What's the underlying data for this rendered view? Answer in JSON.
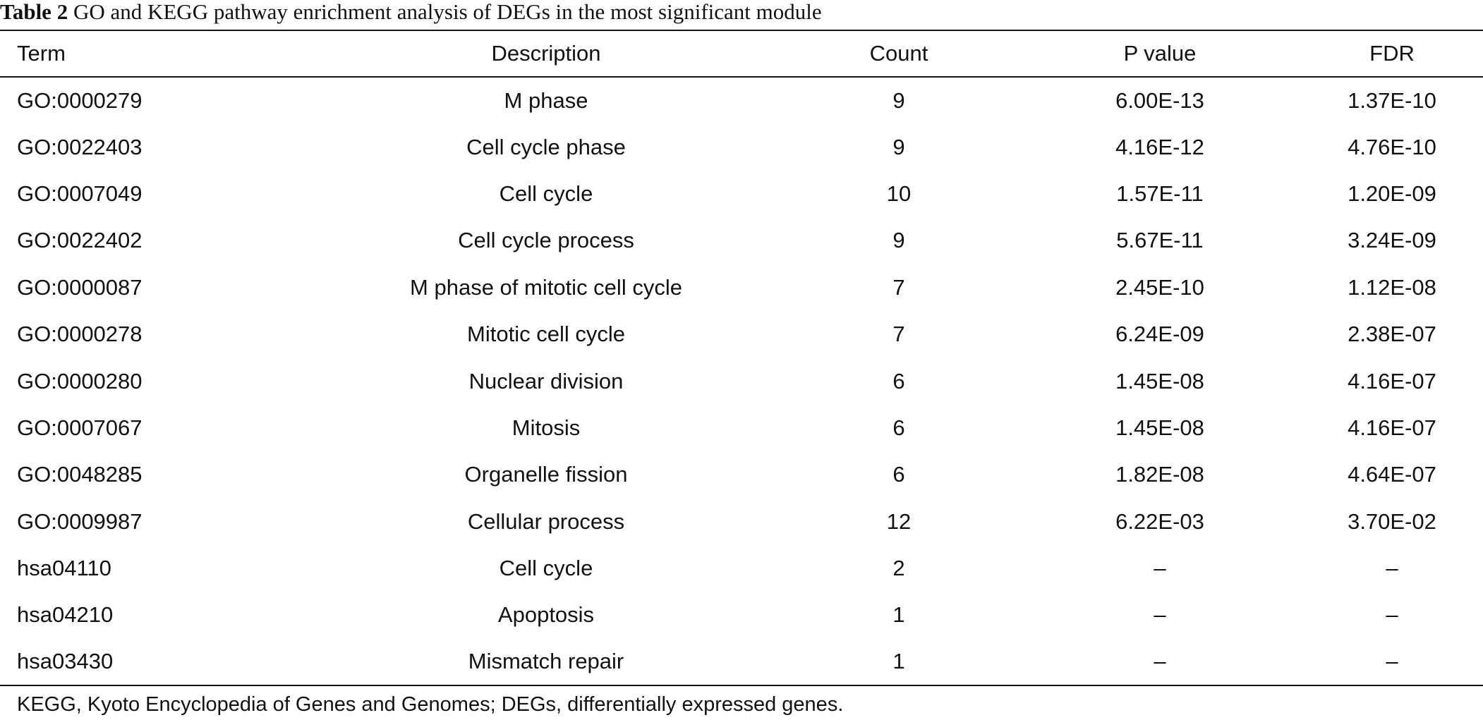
{
  "caption": {
    "label": "Table 2",
    "text": "GO and KEGG pathway enrichment analysis of DEGs in the most significant module"
  },
  "table": {
    "headers": [
      "Term",
      "Description",
      "Count",
      "P value",
      "FDR"
    ],
    "rows": [
      [
        "GO:0000279",
        "M phase",
        "9",
        "6.00E-13",
        "1.37E-10"
      ],
      [
        "GO:0022403",
        "Cell cycle phase",
        "9",
        "4.16E-12",
        "4.76E-10"
      ],
      [
        "GO:0007049",
        "Cell cycle",
        "10",
        "1.57E-11",
        "1.20E-09"
      ],
      [
        "GO:0022402",
        "Cell cycle process",
        "9",
        "5.67E-11",
        "3.24E-09"
      ],
      [
        "GO:0000087",
        "M phase of mitotic cell cycle",
        "7",
        "2.45E-10",
        "1.12E-08"
      ],
      [
        "GO:0000278",
        "Mitotic cell cycle",
        "7",
        "6.24E-09",
        "2.38E-07"
      ],
      [
        "GO:0000280",
        "Nuclear division",
        "6",
        "1.45E-08",
        "4.16E-07"
      ],
      [
        "GO:0007067",
        "Mitosis",
        "6",
        "1.45E-08",
        "4.16E-07"
      ],
      [
        "GO:0048285",
        "Organelle fission",
        "6",
        "1.82E-08",
        "4.64E-07"
      ],
      [
        "GO:0009987",
        "Cellular process",
        "12",
        "6.22E-03",
        "3.70E-02"
      ],
      [
        "hsa04110",
        "Cell cycle",
        "2",
        "–",
        "–"
      ],
      [
        "hsa04210",
        "Apoptosis",
        "1",
        "–",
        "–"
      ],
      [
        "hsa03430",
        "Mismatch repair",
        "1",
        "–",
        "–"
      ]
    ]
  },
  "footnote": "KEGG, Kyoto Encyclopedia of Genes and Genomes; DEGs, differentially expressed genes."
}
